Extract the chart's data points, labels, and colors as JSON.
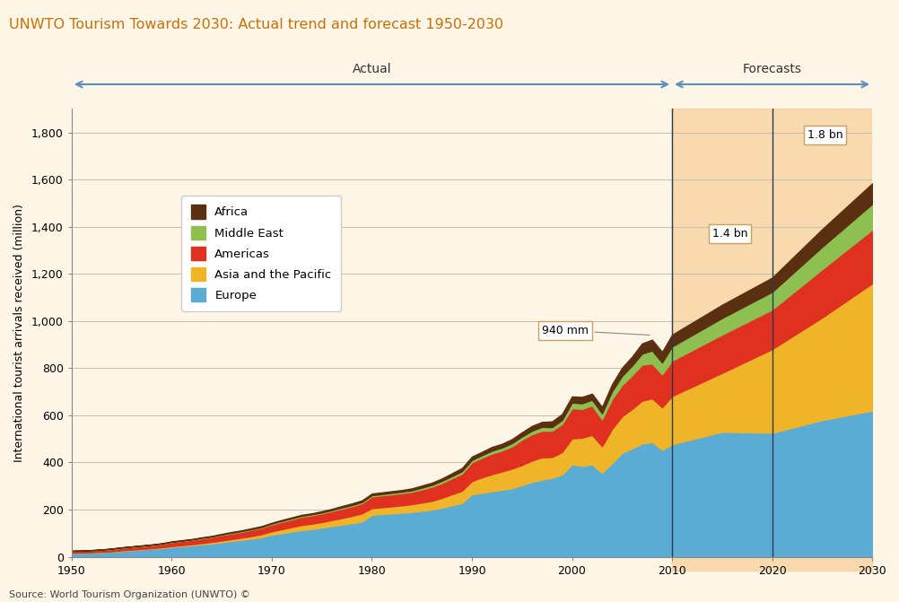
{
  "title": "UNWTO Tourism Towards 2030: Actual trend and forecast 1950-2030",
  "ylabel": "International tourist arrivals received (million)",
  "source": "Source: World Tourism Organization (UNWTO) ©",
  "background_color": "#fdf5e6",
  "plot_bg_color": "#fdf5e6",
  "forecast_bg_color": "#f5c98a",
  "title_color": "#c8700a",
  "arrow_color": "#5a8fc0",
  "years": [
    1950,
    1951,
    1952,
    1953,
    1954,
    1955,
    1956,
    1957,
    1958,
    1959,
    1960,
    1961,
    1962,
    1963,
    1964,
    1965,
    1966,
    1967,
    1968,
    1969,
    1970,
    1971,
    1972,
    1973,
    1974,
    1975,
    1976,
    1977,
    1978,
    1979,
    1980,
    1981,
    1982,
    1983,
    1984,
    1985,
    1986,
    1987,
    1988,
    1989,
    1990,
    1991,
    1992,
    1993,
    1994,
    1995,
    1996,
    1997,
    1998,
    1999,
    2000,
    2001,
    2002,
    2003,
    2004,
    2005,
    2006,
    2007,
    2008,
    2009,
    2010,
    2015,
    2020,
    2025,
    2030
  ],
  "europe": [
    16,
    17,
    18,
    20,
    22,
    25,
    28,
    31,
    34,
    37,
    42,
    45,
    49,
    53,
    57,
    62,
    67,
    72,
    77,
    83,
    94,
    100,
    107,
    113,
    118,
    124,
    130,
    136,
    142,
    149,
    178,
    181,
    184,
    187,
    190,
    195,
    200,
    208,
    218,
    228,
    265,
    271,
    278,
    284,
    291,
    304,
    318,
    327,
    335,
    349,
    392,
    385,
    392,
    356,
    397,
    441,
    460,
    480,
    487,
    454,
    477,
    530,
    526,
    580,
    620
  ],
  "asia_pacific": [
    1,
    1,
    1,
    1,
    1,
    2,
    2,
    2,
    2,
    3,
    3,
    4,
    4,
    5,
    6,
    7,
    8,
    9,
    11,
    13,
    14,
    17,
    19,
    22,
    22,
    23,
    26,
    28,
    31,
    35,
    28,
    29,
    30,
    31,
    33,
    35,
    37,
    42,
    47,
    52,
    56,
    66,
    72,
    78,
    83,
    85,
    90,
    95,
    88,
    95,
    110,
    120,
    125,
    113,
    145,
    155,
    167,
    182,
    185,
    180,
    205,
    250,
    355,
    435,
    540
  ],
  "americas": [
    8,
    8,
    9,
    9,
    10,
    11,
    12,
    13,
    14,
    15,
    17,
    18,
    19,
    20,
    21,
    23,
    24,
    25,
    26,
    27,
    29,
    31,
    33,
    35,
    36,
    37,
    38,
    40,
    41,
    43,
    50,
    51,
    51,
    52,
    53,
    56,
    60,
    63,
    68,
    73,
    80,
    83,
    88,
    89,
    94,
    108,
    112,
    113,
    112,
    119,
    128,
    122,
    125,
    114,
    127,
    133,
    143,
    153,
    148,
    140,
    150,
    163,
    168,
    205,
    228
  ],
  "middle_east": [
    0,
    0,
    0,
    0,
    1,
    1,
    1,
    1,
    1,
    1,
    1,
    1,
    1,
    2,
    2,
    2,
    3,
    3,
    3,
    3,
    4,
    4,
    4,
    4,
    4,
    4,
    4,
    5,
    5,
    5,
    5,
    5,
    6,
    6,
    6,
    7,
    8,
    9,
    9,
    10,
    10,
    11,
    12,
    12,
    14,
    13,
    15,
    16,
    15,
    17,
    24,
    24,
    24,
    25,
    33,
    38,
    41,
    47,
    55,
    50,
    60,
    70,
    75,
    95,
    109
  ],
  "africa": [
    0,
    0,
    0,
    1,
    1,
    1,
    1,
    1,
    1,
    1,
    2,
    2,
    2,
    2,
    2,
    3,
    3,
    3,
    4,
    4,
    3,
    4,
    4,
    4,
    4,
    5,
    5,
    6,
    7,
    7,
    7,
    7,
    7,
    7,
    8,
    9,
    9,
    10,
    12,
    13,
    14,
    14,
    16,
    16,
    17,
    18,
    20,
    21,
    24,
    25,
    26,
    27,
    26,
    27,
    30,
    35,
    38,
    43,
    46,
    45,
    50,
    56,
    60,
    75,
    87
  ],
  "colors": {
    "europe": "#5bacd4",
    "asia_pacific": "#f0b429",
    "americas": "#e03020",
    "middle_east": "#8dc050",
    "africa": "#5a3010"
  },
  "ylim": [
    0,
    1900
  ],
  "xlim": [
    1950,
    2030
  ],
  "yticks": [
    0,
    200,
    400,
    600,
    800,
    1000,
    1200,
    1400,
    1600,
    1800
  ],
  "xticks": [
    1950,
    1960,
    1970,
    1980,
    1990,
    2000,
    2010,
    2020,
    2030
  ],
  "forecast_start": 2010,
  "grid_color": "#c8c0b0"
}
